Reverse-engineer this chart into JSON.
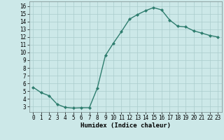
{
  "x": [
    0,
    1,
    2,
    3,
    4,
    5,
    6,
    7,
    8,
    9,
    10,
    11,
    12,
    13,
    14,
    15,
    16,
    17,
    18,
    19,
    20,
    21,
    22,
    23
  ],
  "y": [
    5.5,
    4.8,
    4.4,
    3.3,
    2.9,
    2.8,
    2.85,
    2.85,
    5.4,
    9.6,
    11.2,
    12.7,
    14.3,
    14.9,
    15.4,
    15.8,
    15.5,
    14.2,
    13.4,
    13.3,
    12.8,
    12.5,
    12.2,
    12.0
  ],
  "line_color": "#2e7d6e",
  "marker": "D",
  "marker_size": 2.0,
  "line_width": 1.0,
  "background_color": "#cce8e8",
  "grid_color": "#aacccc",
  "xlabel": "Humidex (Indice chaleur)",
  "xlim": [
    -0.5,
    23.5
  ],
  "ylim": [
    2.3,
    16.6
  ],
  "yticks": [
    3,
    4,
    5,
    6,
    7,
    8,
    9,
    10,
    11,
    12,
    13,
    14,
    15,
    16
  ],
  "xticks": [
    0,
    1,
    2,
    3,
    4,
    5,
    6,
    7,
    8,
    9,
    10,
    11,
    12,
    13,
    14,
    15,
    16,
    17,
    18,
    19,
    20,
    21,
    22,
    23
  ],
  "xlabel_fontsize": 6.5,
  "tick_fontsize": 5.5
}
